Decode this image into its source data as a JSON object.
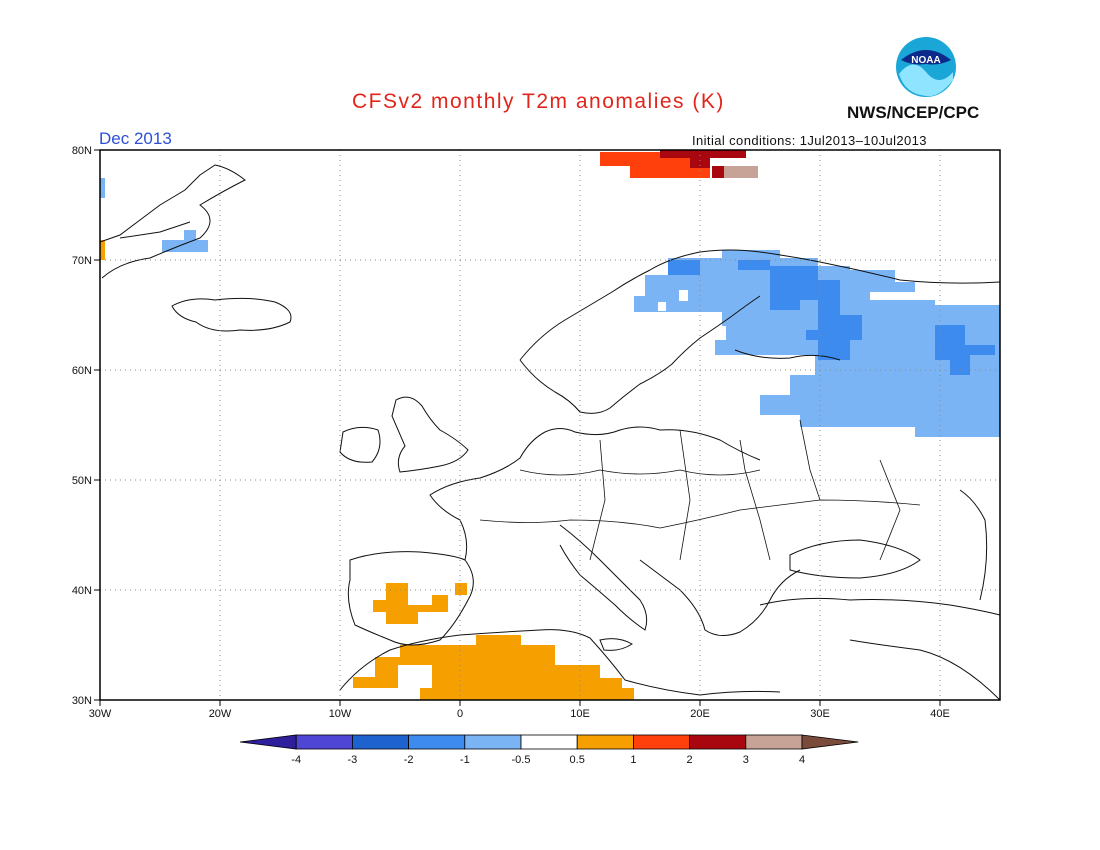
{
  "title": "CFSv2 monthly T2m anomalies (K)",
  "agency": "NWS/NCEP/CPC",
  "logo_text": "NOAA",
  "period": "Dec 2013",
  "initial_conditions": "Initial conditions: 1Jul2013–10Jul2013",
  "map": {
    "projection": "lat-lon",
    "lon_range": [
      -30,
      45
    ],
    "lat_range": [
      30,
      80
    ],
    "lat_ticks": [
      "80N",
      "70N",
      "60N",
      "50N",
      "40N",
      "30N"
    ],
    "lon_ticks": [
      "30W",
      "20W",
      "10W",
      "0",
      "10E",
      "20E",
      "30E",
      "40E"
    ],
    "grid_lines": "dotted",
    "anomaly_regions": [
      {
        "name": "svalbard-warm",
        "category": "2 to 3"
      },
      {
        "name": "svalbard-very-warm",
        "category": "3 to 4"
      },
      {
        "name": "scandinavia-russia-cold",
        "category": "-2 to -1"
      },
      {
        "name": "russia-core-cold",
        "category": "-3 to -2"
      },
      {
        "name": "iberia-warm",
        "category": "0.5 to 1"
      },
      {
        "name": "north-africa-warm",
        "category": "0.5 to 1"
      },
      {
        "name": "greenland-cold",
        "category": "-1 to -0.5"
      }
    ]
  },
  "colorbar": {
    "labels": [
      "-4",
      "-3",
      "-2",
      "-1",
      "-0.5",
      "0.5",
      "1",
      "2",
      "3",
      "4"
    ],
    "colors": [
      "#2e1f9c",
      "#4f46d6",
      "#1e62d0",
      "#3d8bef",
      "#7ab4f4",
      "#ffffff",
      "#f5a000",
      "#ff3f0c",
      "#a8070f",
      "#c7a296",
      "#7a4a3a"
    ]
  }
}
